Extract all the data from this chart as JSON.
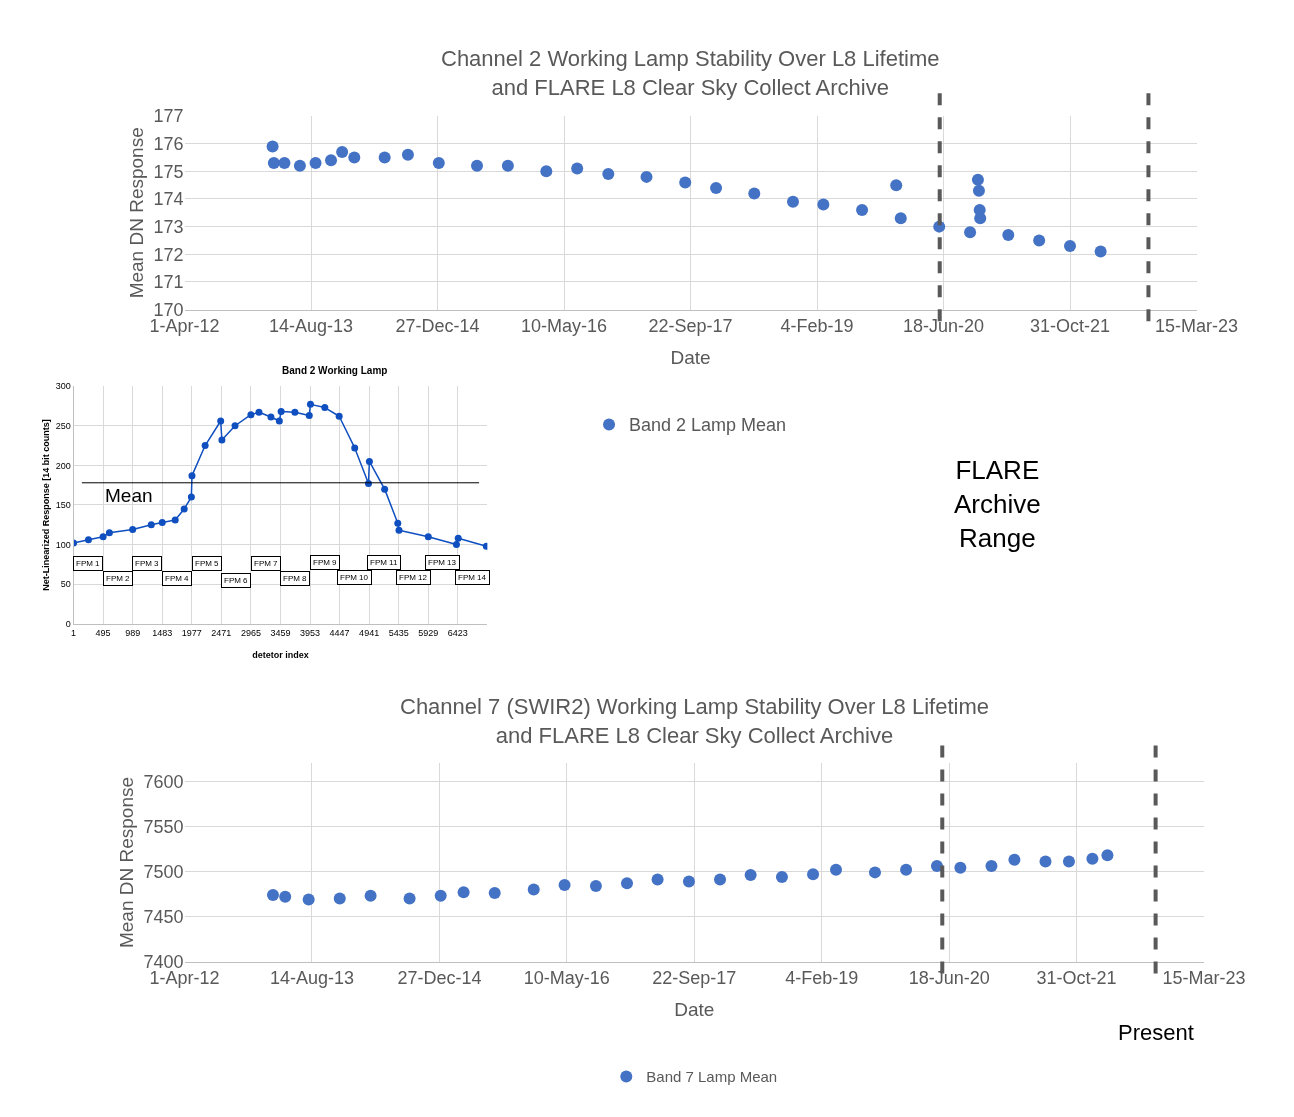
{
  "chart_data": [
    {
      "type": "scatter",
      "title": "Channel 2 Working Lamp Stability Over L8 Lifetime\nand FLARE L8 Clear Sky Collect Archive",
      "xlabel": "Date",
      "ylabel": "Mean DN Response",
      "xlim": [
        "2012-04-01",
        "2023-03-15"
      ],
      "xticks": [
        {
          "value": "2012-04-01",
          "label": "1-Apr-12"
        },
        {
          "value": "2013-08-14",
          "label": "14-Aug-13"
        },
        {
          "value": "2014-12-27",
          "label": "27-Dec-14"
        },
        {
          "value": "2016-05-10",
          "label": "10-May-16"
        },
        {
          "value": "2017-09-22",
          "label": "22-Sep-17"
        },
        {
          "value": "2019-02-04",
          "label": "4-Feb-19"
        },
        {
          "value": "2020-06-18",
          "label": "18-Jun-20"
        },
        {
          "value": "2021-10-31",
          "label": "31-Oct-21"
        },
        {
          "value": "2023-03-15",
          "label": "15-Mar-23"
        }
      ],
      "ylim": [
        170,
        177
      ],
      "yticks": [
        170,
        171,
        172,
        173,
        174,
        175,
        176,
        177
      ],
      "grid": true,
      "legend": "bottom",
      "marker": "circle",
      "series": [
        {
          "name": "Band 2 Lamp Mean",
          "color": "#4472c4",
          "x": [
            "2013-03-15",
            "2013-03-20",
            "2013-05-01",
            "2013-07-01",
            "2013-09-01",
            "2013-11-01",
            "2013-12-15",
            "2014-02-01",
            "2014-06-01",
            "2014-09-01",
            "2015-01-01",
            "2015-06-01",
            "2015-10-01",
            "2016-03-01",
            "2016-07-01",
            "2016-11-01",
            "2017-04-01",
            "2017-09-01",
            "2018-01-01",
            "2018-06-01",
            "2018-11-01",
            "2019-03-01",
            "2019-08-01",
            "2019-12-14",
            "2020-01-01",
            "2020-06-01",
            "2020-10-01",
            "2020-11-01",
            "2020-11-05",
            "2020-11-08",
            "2020-11-10",
            "2021-03-01",
            "2021-07-01",
            "2021-10-31",
            "2022-03-01"
          ],
          "values": [
            175.9,
            175.3,
            175.3,
            175.2,
            175.3,
            175.4,
            175.7,
            175.5,
            175.5,
            175.6,
            175.3,
            175.2,
            175.2,
            175.0,
            175.1,
            174.9,
            174.8,
            174.6,
            174.4,
            174.2,
            173.9,
            173.8,
            173.6,
            174.5,
            173.3,
            173.0,
            172.8,
            174.7,
            174.3,
            173.6,
            173.3,
            172.7,
            172.5,
            172.3,
            172.1
          ]
        }
      ],
      "ref_lines": [
        {
          "axis": "x",
          "value": "2020-06-03",
          "label": null,
          "color": "#595959",
          "line_style": "dashed"
        },
        {
          "axis": "x",
          "value": "2022-09-06",
          "label": null,
          "color": "#595959",
          "line_style": "dashed"
        }
      ],
      "annotations": [
        "FLARE\nArchive\nRange"
      ]
    },
    {
      "type": "line",
      "title": "Band 2 Working Lamp",
      "xlabel": "detetor index",
      "ylabel": "Net-Linearized Response [14 bit counts]",
      "xlim": [
        1,
        6917
      ],
      "xticks": [
        1,
        495,
        989,
        1483,
        1977,
        2471,
        2965,
        3459,
        3953,
        4447,
        4941,
        5435,
        5929,
        6423
      ],
      "ylim": [
        0,
        300
      ],
      "yticks": [
        0,
        50,
        100,
        150,
        200,
        250,
        300
      ],
      "grid": true,
      "marker": "circle",
      "line_style": "solid",
      "series": [
        {
          "color": "#0f4fbf",
          "x": [
            1,
            250,
            495,
            600,
            989,
            1300,
            1483,
            1700,
            1850,
            1970,
            1980,
            2200,
            2460,
            2480,
            2700,
            2965,
            3100,
            3300,
            3440,
            3470,
            3700,
            3940,
            3960,
            4200,
            4440,
            4700,
            4930,
            4945,
            5200,
            5420,
            5440,
            5929,
            6400,
            6430,
            6900
          ],
          "values": [
            102,
            106,
            110,
            115,
            119,
            125,
            128,
            131,
            145,
            160,
            187,
            225,
            256,
            232,
            250,
            264,
            267,
            261,
            256,
            268,
            267,
            263,
            277,
            273,
            262,
            222,
            177,
            205,
            170,
            127,
            118,
            110,
            100,
            108,
            98
          ]
        }
      ],
      "ref_lines": [
        {
          "axis": "y",
          "value": 178,
          "label": "Mean",
          "color": "#000000",
          "line_style": "solid"
        }
      ],
      "annotations": [
        {
          "text": "FPM 1",
          "x": 247,
          "y": 76
        },
        {
          "text": "FPM 2",
          "x": 741,
          "y": 57
        },
        {
          "text": "FPM 3",
          "x": 1235,
          "y": 76
        },
        {
          "text": "FPM 4",
          "x": 1729,
          "y": 57
        },
        {
          "text": "FPM 5",
          "x": 2223,
          "y": 76
        },
        {
          "text": "FPM 6",
          "x": 2717,
          "y": 55
        },
        {
          "text": "FPM 7",
          "x": 3211,
          "y": 76
        },
        {
          "text": "FPM 8",
          "x": 3705,
          "y": 57
        },
        {
          "text": "FPM 9",
          "x": 4199,
          "y": 77
        },
        {
          "text": "FPM 10",
          "x": 4693,
          "y": 59
        },
        {
          "text": "FPM 11",
          "x": 5187,
          "y": 77
        },
        {
          "text": "FPM 12",
          "x": 5681,
          "y": 58
        },
        {
          "text": "FPM 13",
          "x": 6175,
          "y": 77
        },
        {
          "text": "FPM 14",
          "x": 6669,
          "y": 59
        }
      ]
    },
    {
      "type": "scatter",
      "title": "Channel 7 (SWIR2) Working Lamp Stability Over L8 Lifetime\nand FLARE L8 Clear Sky Collect Archive",
      "xlabel": "Date",
      "ylabel": "Mean DN Response",
      "xlim": [
        "2012-04-01",
        "2023-03-15"
      ],
      "xticks": [
        {
          "value": "2012-04-01",
          "label": "1-Apr-12"
        },
        {
          "value": "2013-08-14",
          "label": "14-Aug-13"
        },
        {
          "value": "2014-12-27",
          "label": "27-Dec-14"
        },
        {
          "value": "2016-05-10",
          "label": "10-May-16"
        },
        {
          "value": "2017-09-22",
          "label": "22-Sep-17"
        },
        {
          "value": "2019-02-04",
          "label": "4-Feb-19"
        },
        {
          "value": "2020-06-18",
          "label": "18-Jun-20"
        },
        {
          "value": "2021-10-31",
          "label": "31-Oct-21"
        },
        {
          "value": "2023-03-15",
          "label": "15-Mar-23"
        }
      ],
      "ylim": [
        7400,
        7620
      ],
      "yticks": [
        7400,
        7450,
        7500,
        7550,
        7600
      ],
      "grid": true,
      "legend": "bottom",
      "marker": "circle",
      "series": [
        {
          "name": "Band 7 Lamp Mean",
          "color": "#4472c4",
          "x": [
            "2013-03-14",
            "2013-05-01",
            "2013-08-01",
            "2013-12-01",
            "2014-04-01",
            "2014-09-01",
            "2015-01-01",
            "2015-04-01",
            "2015-08-01",
            "2016-01-01",
            "2016-05-01",
            "2016-09-01",
            "2017-01-01",
            "2017-05-01",
            "2017-09-01",
            "2018-01-01",
            "2018-05-01",
            "2018-09-01",
            "2019-01-01",
            "2019-04-01",
            "2019-09-01",
            "2020-01-01",
            "2020-05-01",
            "2020-08-01",
            "2020-12-01",
            "2021-03-01",
            "2021-07-01",
            "2021-10-01",
            "2022-01-01",
            "2022-03-01"
          ],
          "values": [
            7474,
            7472,
            7469,
            7470,
            7473,
            7470,
            7473,
            7477,
            7476,
            7480,
            7485,
            7484,
            7487,
            7491,
            7489,
            7491,
            7496,
            7494,
            7497,
            7502,
            7499,
            7502,
            7506,
            7504,
            7506,
            7513,
            7511,
            7511,
            7514,
            7518
          ]
        }
      ],
      "ref_lines": [
        {
          "axis": "x",
          "value": "2020-05-22",
          "label": null,
          "color": "#595959",
          "line_style": "dashed"
        },
        {
          "axis": "x",
          "value": "2022-09-06",
          "label": "Present",
          "color": "#595959",
          "line_style": "dashed"
        }
      ]
    }
  ]
}
